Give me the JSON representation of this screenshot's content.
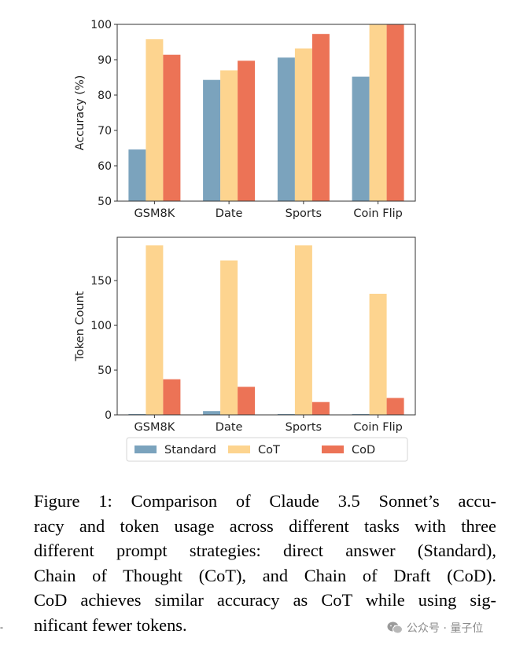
{
  "chart_data": [
    {
      "type": "bar",
      "categories": [
        "GSM8K",
        "Date",
        "Sports",
        "Coin Flip"
      ],
      "series": [
        {
          "name": "Standard",
          "values": [
            64.6,
            84.3,
            90.6,
            85.2
          ]
        },
        {
          "name": "CoT",
          "values": [
            95.8,
            87.0,
            93.2,
            100.0
          ]
        },
        {
          "name": "CoD",
          "values": [
            91.4,
            89.7,
            97.3,
            100.0
          ]
        }
      ],
      "ylabel": "Accuracy (%)",
      "ylim": [
        50,
        100
      ],
      "yticks": [
        "50",
        "60",
        "70",
        "80",
        "90",
        "100"
      ],
      "grid": false
    },
    {
      "type": "bar",
      "categories": [
        "GSM8K",
        "Date",
        "Sports",
        "Coin Flip"
      ],
      "series": [
        {
          "name": "Standard",
          "values": [
            1.0,
            4.2,
            1.0,
            1.0
          ]
        },
        {
          "name": "CoT",
          "values": [
            189.4,
            172.5,
            189.4,
            135.3
          ]
        },
        {
          "name": "CoD",
          "values": [
            39.8,
            31.3,
            14.3,
            18.9
          ]
        }
      ],
      "ylabel": "Token Count",
      "ylim": [
        0,
        198.4
      ],
      "yticks": [
        "0",
        "50",
        "100",
        "150"
      ],
      "grid": false
    }
  ],
  "legend": {
    "placement": "bottom",
    "items": [
      "Standard",
      "CoT",
      "CoD"
    ]
  },
  "colors": {
    "Standard": "#7ba3bd",
    "CoT": "#fdd48f",
    "CoD": "#ec7356"
  },
  "caption": {
    "lines": [
      "Figure 1: Comparison of Claude 3.5 Sonnet’s accu-",
      "racy and token usage across different tasks with three",
      "different prompt strategies: direct answer (Standard),",
      "Chain of Thought (CoT), and Chain of Draft (CoD).",
      "CoD achieves similar accuracy as CoT while using sig-",
      "nificant fewer tokens."
    ]
  },
  "side_mark": "-",
  "watermark": {
    "icon": "wechat-icon",
    "text": "公众号 · 量子位"
  }
}
